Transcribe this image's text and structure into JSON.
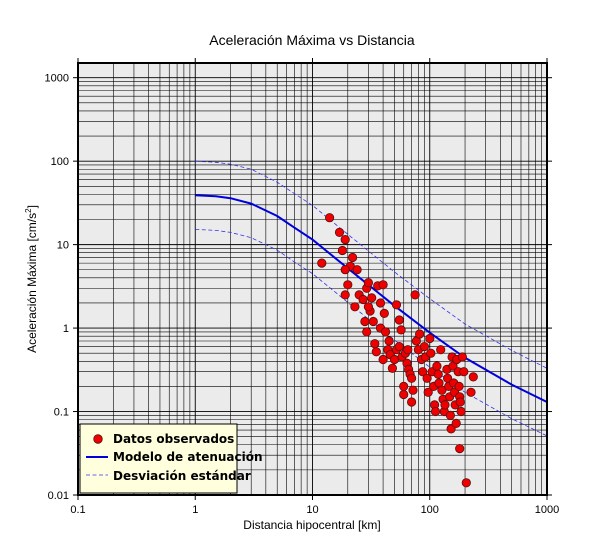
{
  "chart_data": {
    "type": "scatter",
    "title": "Aceleración Máxima vs Distancia",
    "xlabel": "Distancia hipocentral [km]",
    "ylabel": "Aceleración Máxima [cm/s",
    "ylabel_sup": "2",
    "ylabel_end": "]",
    "x_scale": "log",
    "y_scale": "log",
    "xlim": [
      0.1,
      1000
    ],
    "ylim": [
      0.01,
      1500
    ],
    "x_ticks": [
      {
        "value": 0.1,
        "label": "0.1"
      },
      {
        "value": 1,
        "label": "1"
      },
      {
        "value": 10,
        "label": "10"
      },
      {
        "value": 100,
        "label": "100"
      },
      {
        "value": 1000,
        "label": "1000"
      }
    ],
    "y_ticks": [
      {
        "value": 0.01,
        "label": "0.01"
      },
      {
        "value": 0.1,
        "label": "0.1"
      },
      {
        "value": 1,
        "label": "1"
      },
      {
        "value": 10,
        "label": "10"
      },
      {
        "value": 100,
        "label": "100"
      },
      {
        "value": 1000,
        "label": "1000"
      }
    ],
    "grid": true,
    "background": "#ebebeb",
    "legend_position": "bottom-left",
    "legend_background": "#ffffdd",
    "series": [
      {
        "name": "Datos observados",
        "kind": "points",
        "color": "#ee0000",
        "edge_color": "#551111",
        "points": [
          [
            14,
            21
          ],
          [
            17,
            14
          ],
          [
            19,
            11.5
          ],
          [
            18,
            8.5
          ],
          [
            22,
            7
          ],
          [
            21,
            5.5
          ],
          [
            24,
            5
          ],
          [
            19,
            5
          ],
          [
            12,
            6
          ],
          [
            20,
            3.3
          ],
          [
            19,
            2.5
          ],
          [
            23,
            1.8
          ],
          [
            25,
            2.5
          ],
          [
            27,
            2.2
          ],
          [
            29,
            3.0
          ],
          [
            30,
            3.5
          ],
          [
            31,
            1.6
          ],
          [
            28,
            1.2
          ],
          [
            32,
            2.3
          ],
          [
            30,
            1.8
          ],
          [
            33,
            1.2
          ],
          [
            36,
            3.2
          ],
          [
            40,
            3.3
          ],
          [
            41,
            1.5
          ],
          [
            38,
            1.0
          ],
          [
            42,
            0.9
          ],
          [
            34,
            0.65
          ],
          [
            35,
            0.52
          ],
          [
            29,
            0.9
          ],
          [
            44,
            0.55
          ],
          [
            40,
            0.42
          ],
          [
            46,
            0.48
          ],
          [
            48,
            0.33
          ],
          [
            50,
            0.42
          ],
          [
            52,
            0.55
          ],
          [
            55,
            0.6
          ],
          [
            58,
            0.45
          ],
          [
            52,
            1.9
          ],
          [
            55,
            1.25
          ],
          [
            57,
            0.95
          ],
          [
            60,
            0.2
          ],
          [
            62,
            0.5
          ],
          [
            64,
            0.38
          ],
          [
            66,
            0.32
          ],
          [
            68,
            0.28
          ],
          [
            70,
            0.25
          ],
          [
            72,
            0.18
          ],
          [
            75,
            2.5
          ],
          [
            77,
            0.7
          ],
          [
            80,
            0.55
          ],
          [
            82,
            0.85
          ],
          [
            85,
            0.42
          ],
          [
            87,
            0.3
          ],
          [
            90,
            0.6
          ],
          [
            92,
            0.45
          ],
          [
            95,
            0.25
          ],
          [
            97,
            0.17
          ],
          [
            100,
            0.75
          ],
          [
            102,
            0.5
          ],
          [
            105,
            0.3
          ],
          [
            108,
            0.2
          ],
          [
            110,
            0.12
          ],
          [
            112,
            0.1
          ],
          [
            115,
            0.35
          ],
          [
            118,
            0.28
          ],
          [
            120,
            0.22
          ],
          [
            124,
            0.55
          ],
          [
            127,
            0.18
          ],
          [
            130,
            0.14
          ],
          [
            133,
            0.1
          ],
          [
            135,
            0.12
          ],
          [
            140,
            0.32
          ],
          [
            142,
            0.25
          ],
          [
            145,
            0.2
          ],
          [
            148,
            0.15
          ],
          [
            150,
            0.09
          ],
          [
            152,
            0.062
          ],
          [
            155,
            0.45
          ],
          [
            158,
            0.35
          ],
          [
            160,
            0.22
          ],
          [
            163,
            0.17
          ],
          [
            165,
            0.12
          ],
          [
            168,
            0.072
          ],
          [
            170,
            0.42
          ],
          [
            175,
            0.3
          ],
          [
            178,
            0.2
          ],
          [
            180,
            0.15
          ],
          [
            182,
            0.13
          ],
          [
            185,
            0.1
          ],
          [
            190,
            0.45
          ],
          [
            195,
            0.3
          ],
          [
            180,
            0.036
          ],
          [
            205,
            0.014
          ],
          [
            225,
            0.17
          ],
          [
            235,
            0.26
          ],
          [
            60,
            0.16
          ],
          [
            70,
            0.13
          ],
          [
            65,
            0.55
          ],
          [
            45,
            0.7
          ],
          [
            38,
            2.0
          ]
        ]
      },
      {
        "name": "Modelo de atenuación",
        "kind": "line",
        "color": "#0000dd",
        "x": [
          1,
          1.5,
          2,
          3,
          5,
          7,
          10,
          20,
          50,
          100,
          200,
          500,
          1000
        ],
        "y": [
          39,
          38,
          36,
          31,
          22,
          16,
          11.5,
          5.2,
          1.85,
          0.88,
          0.44,
          0.21,
          0.13
        ]
      },
      {
        "name": "Desviación estándar",
        "kind": "dashed",
        "color": "#3333ee",
        "lines": [
          {
            "x": [
              1,
              1.5,
              2,
              3,
              5,
              7,
              10,
              20,
              50,
              100,
              200,
              500,
              1000
            ],
            "y": [
              100,
              97,
              92,
              80,
              56,
              41,
              29.5,
              13.3,
              4.7,
              2.25,
              1.12,
              0.54,
              0.33
            ]
          },
          {
            "x": [
              1,
              1.5,
              2,
              3,
              5,
              7,
              10,
              20,
              50,
              100,
              200,
              500,
              1000
            ],
            "y": [
              15.2,
              14.8,
              14,
              12.1,
              8.6,
              6.2,
              4.5,
              2.03,
              0.72,
              0.34,
              0.17,
              0.082,
              0.051
            ]
          }
        ]
      }
    ]
  }
}
